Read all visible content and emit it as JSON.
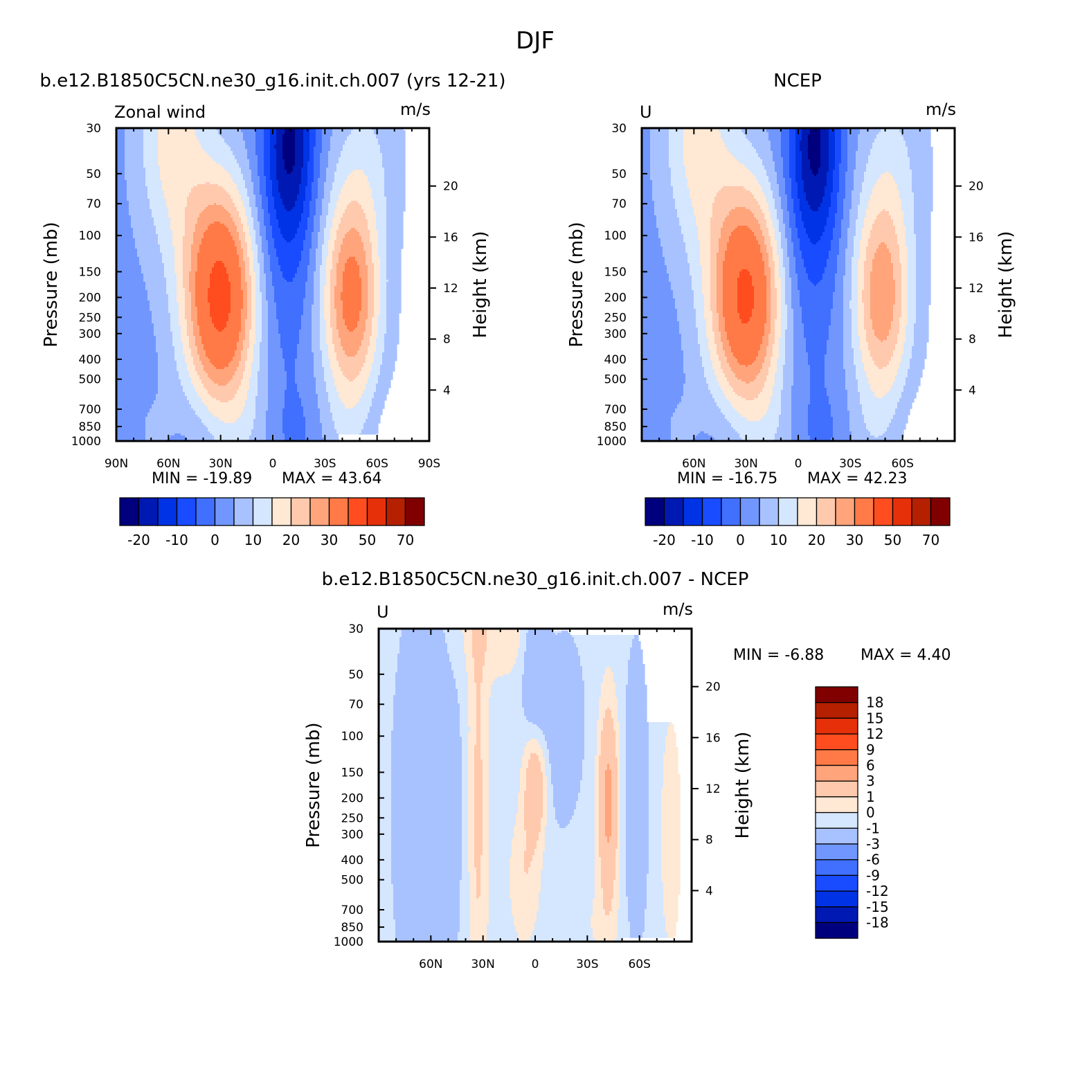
{
  "title": "DJF",
  "colors": {
    "panel_palette": [
      "#00007f",
      "#0019b2",
      "#0033e5",
      "#1a4cff",
      "#4170ff",
      "#7197ff",
      "#a8c2ff",
      "#d5e6ff",
      "#ffe8d4",
      "#ffc9ad",
      "#ffa47b",
      "#ff7a47",
      "#ff4d1f",
      "#e6300a",
      "#b52000",
      "#800000"
    ],
    "diff_palette": [
      "#00007f",
      "#0019b2",
      "#0033e5",
      "#1a4cff",
      "#4170ff",
      "#7197ff",
      "#a8c2ff",
      "#d5e6ff",
      "#ffe8d4",
      "#ffc9ad",
      "#ffa47b",
      "#ff7a47",
      "#ff4d1f",
      "#e6300a",
      "#b52000",
      "#800000"
    ]
  },
  "chart_data": [
    {
      "type": "heatmap",
      "panel_title": "b.e12.B1850C5CN.ne30_g16.init.ch.007 (yrs 12-21)",
      "left_label": "Zonal wind",
      "units": "m/s",
      "ylabel": "Pressure (mb)",
      "right_label": "Height (km)",
      "y_ticks": [
        "30",
        "50",
        "70",
        "100",
        "150",
        "200",
        "250",
        "300",
        "400",
        "500",
        "700",
        "850",
        "1000"
      ],
      "right_ticks": [
        "20",
        "16",
        "12",
        "8",
        "4"
      ],
      "x_ticks": [
        "90N",
        "60N",
        "30N",
        "0",
        "30S",
        "60S",
        "90S"
      ],
      "xlim": [
        90,
        -90
      ],
      "min_label": "MIN = -19.89",
      "max_label": "MAX = 43.64",
      "colorbar_labels": [
        "-20",
        "-10",
        "0",
        "10",
        "20",
        "30",
        "50",
        "70"
      ],
      "jets": [
        {
          "lat": 30,
          "p": 200,
          "peak": 43.6
        },
        {
          "lat": -45,
          "p": 200,
          "peak": 33
        }
      ],
      "min": -19.89,
      "max": 43.64
    },
    {
      "type": "heatmap",
      "panel_title": "NCEP",
      "left_label": "U",
      "units": "m/s",
      "ylabel": "Pressure (mb)",
      "right_label": "Height (km)",
      "y_ticks": [
        "30",
        "50",
        "70",
        "100",
        "150",
        "200",
        "250",
        "300",
        "400",
        "500",
        "700",
        "850",
        "1000"
      ],
      "right_ticks": [
        "20",
        "16",
        "12",
        "8",
        "4"
      ],
      "x_ticks": [
        "60N",
        "30N",
        "0",
        "30S",
        "60S"
      ],
      "xlim": [
        90,
        -90
      ],
      "min_label": "MIN = -16.75",
      "max_label": "MAX = 42.23",
      "colorbar_labels": [
        "-20",
        "-10",
        "0",
        "10",
        "20",
        "30",
        "50",
        "70"
      ],
      "jets": [
        {
          "lat": 30,
          "p": 200,
          "peak": 42.2
        },
        {
          "lat": -48,
          "p": 200,
          "peak": 29
        }
      ],
      "min": -16.75,
      "max": 42.23
    },
    {
      "type": "heatmap",
      "panel_title": "b.e12.B1850C5CN.ne30_g16.init.ch.007 - NCEP",
      "left_label": "U",
      "units": "m/s",
      "ylabel": "Pressure (mb)",
      "right_label": "Height (km)",
      "y_ticks": [
        "30",
        "50",
        "70",
        "100",
        "150",
        "200",
        "250",
        "300",
        "400",
        "500",
        "700",
        "850",
        "1000"
      ],
      "right_ticks": [
        "20",
        "16",
        "12",
        "8",
        "4"
      ],
      "x_ticks": [
        "60N",
        "30N",
        "0",
        "30S",
        "60S"
      ],
      "xlim": [
        90,
        -90
      ],
      "min_label": "MIN = -6.88",
      "max_label": "MAX = 4.40",
      "colorbar_labels": [
        "18",
        "15",
        "12",
        "9",
        "6",
        "3",
        "1",
        "0",
        "-1",
        "-3",
        "-6",
        "-9",
        "-12",
        "-15",
        "-18"
      ],
      "min": -6.88,
      "max": 4.4
    }
  ]
}
